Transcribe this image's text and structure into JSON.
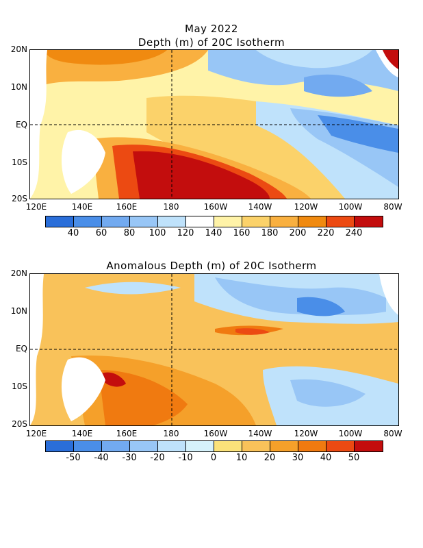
{
  "top_panel": {
    "title_line1": "May 2022",
    "title_line2": "Depth (m) of 20C Isotherm",
    "y_labels": [
      "20N",
      "10N",
      "EQ",
      "10S",
      "20S"
    ],
    "x_labels": [
      "120E",
      "140E",
      "160E",
      "180",
      "160W",
      "140W",
      "120W",
      "100W",
      "80W"
    ],
    "colorbar_labels": [
      "40",
      "60",
      "80",
      "100",
      "120",
      "140",
      "160",
      "180",
      "200",
      "220",
      "240"
    ],
    "colorbar_colors": [
      "#2a6ed9",
      "#4a8ee8",
      "#72aaf0",
      "#98c6f6",
      "#bfe2fb",
      "#ffffff",
      "#fff3a8",
      "#fbd26a",
      "#f9b040",
      "#f08a10",
      "#ec4a12",
      "#c30d0d"
    ]
  },
  "bottom_panel": {
    "title": "Anomalous Depth (m) of 20C Isotherm",
    "y_labels": [
      "20N",
      "10N",
      "EQ",
      "10S",
      "20S"
    ],
    "x_labels": [
      "120E",
      "140E",
      "160E",
      "180",
      "160W",
      "140W",
      "120W",
      "100W",
      "80W"
    ],
    "colorbar_labels": [
      "-50",
      "-40",
      "-30",
      "-20",
      "-10",
      "0",
      "10",
      "20",
      "30",
      "40",
      "50"
    ],
    "colorbar_colors": [
      "#2a6ed9",
      "#4a8ee8",
      "#72aaf0",
      "#98c6f6",
      "#bfe2fb",
      "#d6f2fb",
      "#fbe27a",
      "#f9c25a",
      "#f5a02a",
      "#f07a10",
      "#ec4a12",
      "#c30d0d"
    ]
  }
}
